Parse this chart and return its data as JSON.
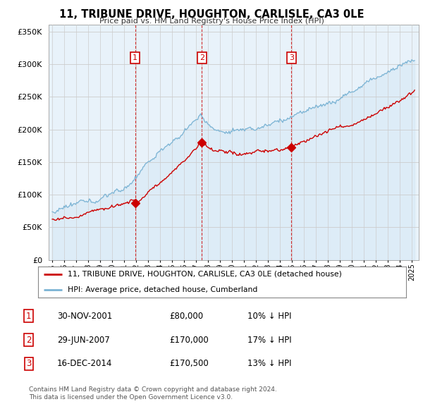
{
  "title": "11, TRIBUNE DRIVE, HOUGHTON, CARLISLE, CA3 0LE",
  "subtitle": "Price paid vs. HM Land Registry's House Price Index (HPI)",
  "ylim": [
    0,
    360000
  ],
  "yticks": [
    0,
    50000,
    100000,
    150000,
    200000,
    250000,
    300000,
    350000
  ],
  "hpi_color": "#7ab3d4",
  "hpi_fill_color": "#d6e8f5",
  "price_color": "#cc0000",
  "vline_color": "#cc0000",
  "grid_color": "#cccccc",
  "chart_bg": "#e8f2fa",
  "transactions": [
    {
      "date_num": 2001.92,
      "price": 80000,
      "label": "1"
    },
    {
      "date_num": 2007.49,
      "price": 170000,
      "label": "2"
    },
    {
      "date_num": 2014.96,
      "price": 170500,
      "label": "3"
    }
  ],
  "legend_price_label": "11, TRIBUNE DRIVE, HOUGHTON, CARLISLE, CA3 0LE (detached house)",
  "legend_hpi_label": "HPI: Average price, detached house, Cumberland",
  "table_rows": [
    {
      "num": "1",
      "date": "30-NOV-2001",
      "price": "£80,000",
      "hpi": "10% ↓ HPI"
    },
    {
      "num": "2",
      "date": "29-JUN-2007",
      "price": "£170,000",
      "hpi": "17% ↓ HPI"
    },
    {
      "num": "3",
      "date": "16-DEC-2014",
      "price": "£170,500",
      "hpi": "13% ↓ HPI"
    }
  ],
  "footer": "Contains HM Land Registry data © Crown copyright and database right 2024.\nThis data is licensed under the Open Government Licence v3.0.",
  "background_color": "#ffffff"
}
